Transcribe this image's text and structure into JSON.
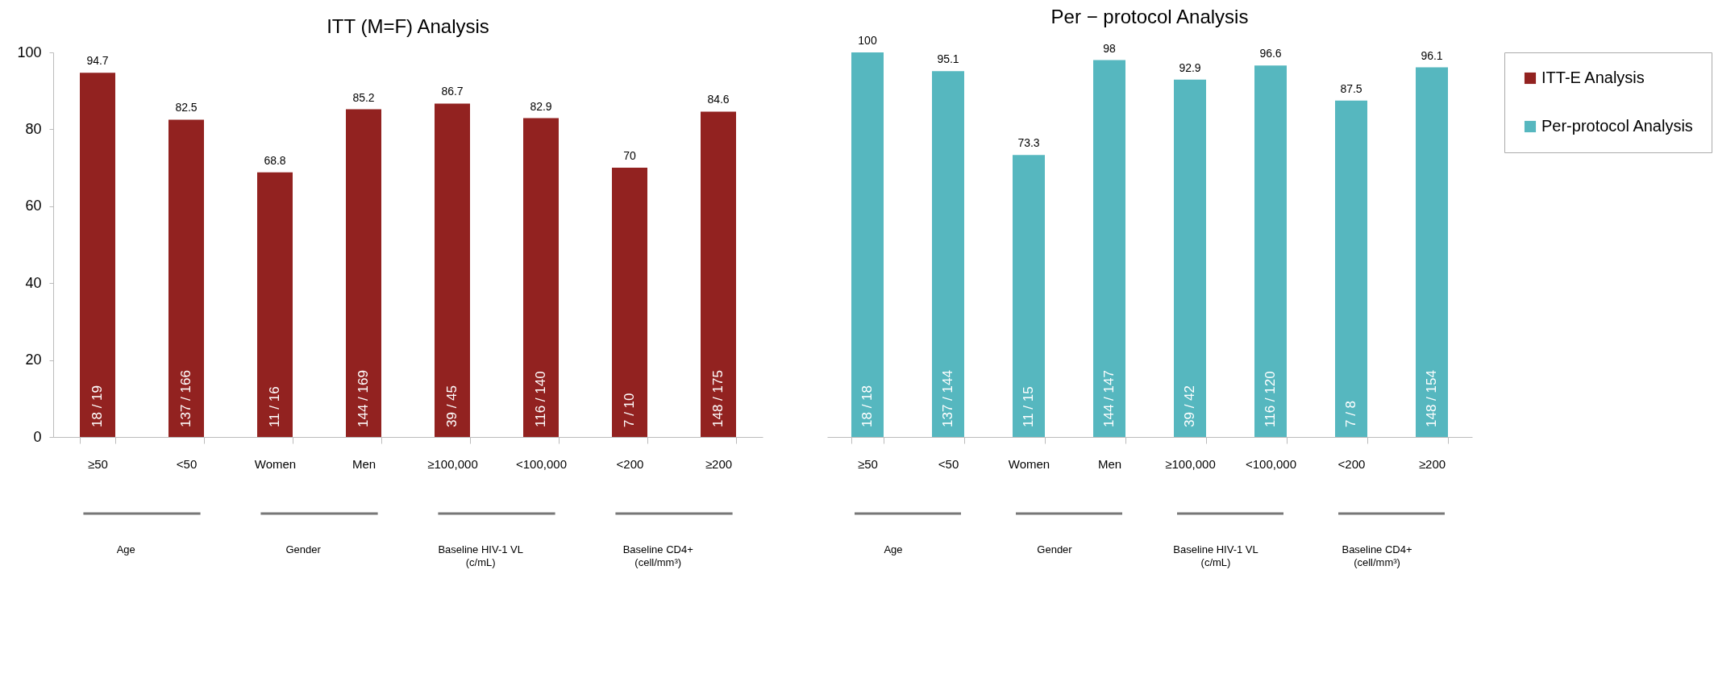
{
  "chart_data": [
    {
      "type": "bar",
      "title": "ITT (M=F) Analysis",
      "categories": [
        "≥50",
        "<50",
        "Women",
        "Men",
        "≥100,000",
        "<100,000",
        "<200",
        "≥200"
      ],
      "series": [
        {
          "name": "ITT-E Analysis",
          "color": "#922220",
          "values": [
            94.7,
            82.5,
            68.8,
            85.2,
            86.7,
            82.9,
            70,
            84.6
          ]
        }
      ],
      "ylim": [
        0,
        100
      ],
      "yticks": [
        0,
        20,
        40,
        60,
        80,
        100
      ],
      "data_labels": true,
      "annotations": [
        {
          "text": "18 / 19",
          "x": "≥50",
          "y": 0
        },
        {
          "text": "137 / 166",
          "x": "<50",
          "y": 0
        },
        {
          "text": "11 / 16",
          "x": "Women",
          "y": 0
        },
        {
          "text": "144 / 169",
          "x": "Men",
          "y": 0
        },
        {
          "text": "39 / 45",
          "x": "≥100,000",
          "y": 0
        },
        {
          "text": "116 / 140",
          "x": "<100,000",
          "y": 0
        },
        {
          "text": "7 / 10",
          "x": "<200",
          "y": 0
        },
        {
          "text": "148 / 175",
          "x": "≥200",
          "y": 0
        },
        "Age",
        "Gender",
        "Baseline HIV-1 VL\n(c/mL)",
        "Baseline CD4+\n(cell/mm³)"
      ]
    },
    {
      "type": "bar",
      "title": "Per − protocol Analysis",
      "categories": [
        "≥50",
        "<50",
        "Women",
        "Men",
        "≥100,000",
        "<100,000",
        "<200",
        "≥200"
      ],
      "series": [
        {
          "name": "Per-protocol Analysis",
          "color": "#56b7bf",
          "values": [
            100,
            95.1,
            73.3,
            98,
            92.9,
            96.6,
            87.5,
            96.1
          ]
        }
      ],
      "ylim": [
        0,
        100
      ],
      "yticks": [
        0,
        20,
        40,
        60,
        80,
        100
      ],
      "data_labels": true,
      "tick_labels": "x",
      "legend": "right",
      "annotations": [
        {
          "text": "18 / 18",
          "x": "≥50",
          "y": 0
        },
        {
          "text": "137 / 144",
          "x": "<50",
          "y": 0
        },
        {
          "text": "11 / 15",
          "x": "Women",
          "y": 0
        },
        {
          "text": "144 / 147",
          "x": "Men",
          "y": 0
        },
        {
          "text": "39 / 42",
          "x": "≥100,000",
          "y": 0
        },
        {
          "text": "116 / 120",
          "x": "<100,000",
          "y": 0
        },
        {
          "text": "7 / 8",
          "x": "<200",
          "y": 0
        },
        {
          "text": "148 / 154",
          "x": "≥200",
          "y": 0
        },
        "Age",
        "Gender",
        "Baseline HIV-1 VL\n(c/mL)",
        "Baseline CD4+\n(cell/mm³)"
      ]
    }
  ]
}
